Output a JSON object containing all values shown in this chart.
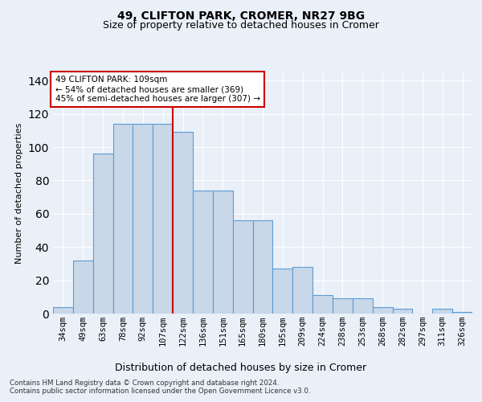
{
  "title1": "49, CLIFTON PARK, CROMER, NR27 9BG",
  "title2": "Size of property relative to detached houses in Cromer",
  "xlabel": "Distribution of detached houses by size in Cromer",
  "ylabel": "Number of detached properties",
  "categories": [
    "34sqm",
    "49sqm",
    "63sqm",
    "78sqm",
    "92sqm",
    "107sqm",
    "122sqm",
    "136sqm",
    "151sqm",
    "165sqm",
    "180sqm",
    "195sqm",
    "209sqm",
    "224sqm",
    "238sqm",
    "253sqm",
    "268sqm",
    "282sqm",
    "297sqm",
    "311sqm",
    "326sqm"
  ],
  "values": [
    4,
    32,
    96,
    114,
    114,
    114,
    109,
    74,
    74,
    56,
    56,
    27,
    28,
    11,
    9,
    9,
    4,
    3,
    0,
    3,
    1
  ],
  "bar_color": "#c8d8e8",
  "bar_edge_color": "#5b9bd5",
  "vline_index": 5,
  "vline_color": "#cc0000",
  "annotation_lines": [
    "49 CLIFTON PARK: 109sqm",
    "← 54% of detached houses are smaller (369)",
    "45% of semi-detached houses are larger (307) →"
  ],
  "annotation_box_color": "#cc0000",
  "ylim": [
    0,
    145
  ],
  "yticks": [
    0,
    20,
    40,
    60,
    80,
    100,
    120,
    140
  ],
  "footnote1": "Contains HM Land Registry data © Crown copyright and database right 2024.",
  "footnote2": "Contains public sector information licensed under the Open Government Licence v3.0.",
  "bg_color": "#eaf0f8",
  "grid_color": "#ffffff"
}
